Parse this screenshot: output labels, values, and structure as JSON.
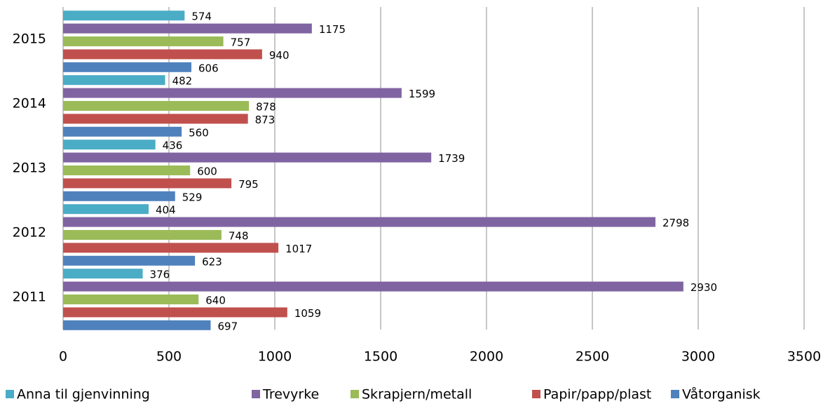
{
  "chart_data": {
    "type": "hbar",
    "categories": [
      "2011",
      "2012",
      "2013",
      "2014",
      "2015"
    ],
    "series": [
      {
        "name": "Anna til gjenvinning",
        "color": "#4bacc6",
        "values": [
          376,
          404,
          436,
          482,
          574
        ]
      },
      {
        "name": "Trevyrke",
        "color": "#8064a2",
        "values": [
          2930,
          2798,
          1739,
          1599,
          1175
        ]
      },
      {
        "name": "Skrapjern/metall",
        "color": "#9bbb59",
        "values": [
          640,
          748,
          600,
          878,
          757
        ]
      },
      {
        "name": "Papir/papp/plast",
        "color": "#c0504d",
        "values": [
          1059,
          1017,
          795,
          873,
          940
        ]
      },
      {
        "name": "Våtorganisk",
        "color": "#4f81bd",
        "values": [
          697,
          623,
          529,
          560,
          606
        ]
      }
    ],
    "xlim": [
      0,
      3500
    ],
    "xticks": [
      0,
      500,
      1000,
      1500,
      2000,
      2500,
      3000,
      3500
    ],
    "grid": true,
    "legend": "bottom"
  }
}
